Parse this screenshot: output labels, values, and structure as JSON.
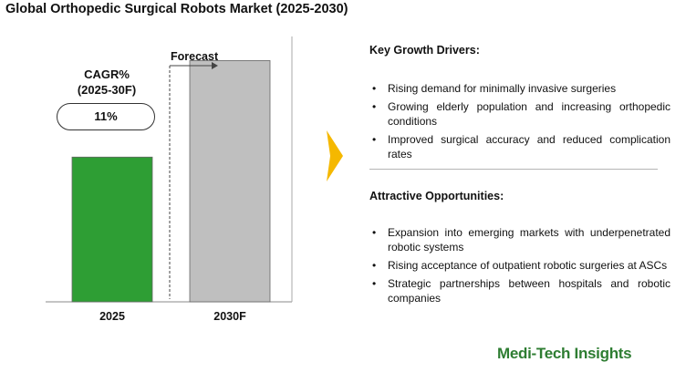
{
  "title": "Global Orthopedic Surgical Robots Market (2025-2030)",
  "cagr": {
    "label": "CAGR%\n(2025-30F)",
    "value": "11%"
  },
  "forecast_label": "Forecast",
  "chart_data": {
    "type": "bar",
    "categories": [
      "2025",
      "2030F"
    ],
    "values": [
      60,
      100
    ],
    "colors": [
      "#2e9e34",
      "#bfbfbf"
    ],
    "forecast_from_index": 1,
    "ylim": [
      0,
      110
    ],
    "grid": false,
    "title": "",
    "xlabel": "",
    "ylabel": ""
  },
  "drivers": {
    "heading": "Key Growth Drivers:",
    "items": [
      "Rising demand for minimally invasive surgeries",
      "Growing elderly population and increasing orthopedic conditions",
      "Improved surgical accuracy and reduced complication rates"
    ]
  },
  "opportunities": {
    "heading": "Attractive Opportunities:",
    "items": [
      "Expansion into emerging markets with underpenetrated robotic systems",
      "Rising acceptance of outpatient robotic surgeries at ASCs",
      "Strategic partnerships between hospitals and robotic companies"
    ]
  },
  "brand": "Medi-Tech Insights",
  "colors": {
    "arrow": "#f5b800",
    "brand": "#2e7d32"
  }
}
